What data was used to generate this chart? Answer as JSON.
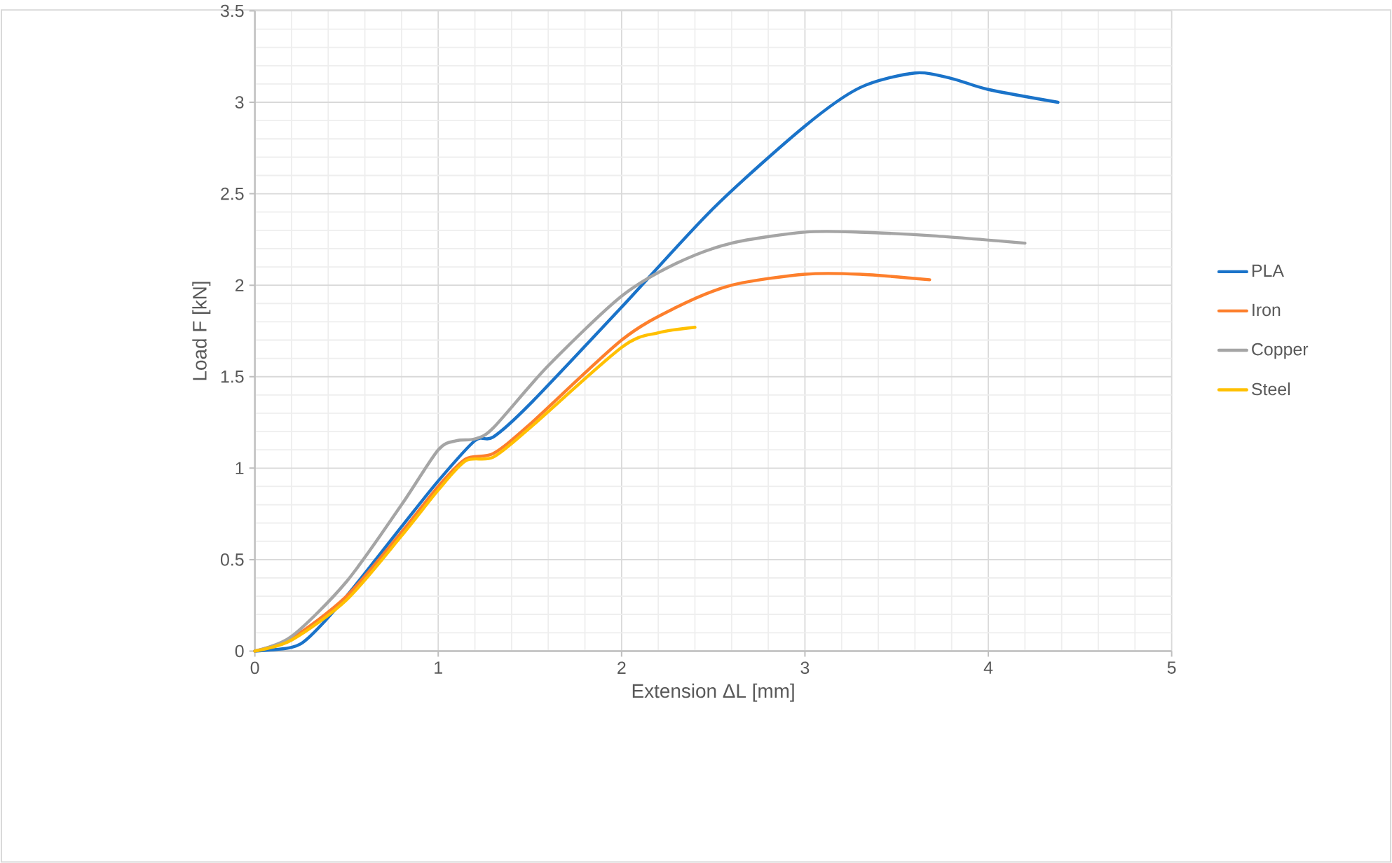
{
  "chart_data": {
    "type": "line",
    "xlabel": "Extension ΔL [mm]",
    "ylabel": "Load F [kN]",
    "xlim": [
      0,
      5
    ],
    "ylim": [
      0,
      3.5
    ],
    "xticks": [
      0,
      1,
      2,
      3,
      4,
      5
    ],
    "yticks": [
      0,
      0.5,
      1,
      1.5,
      2,
      2.5,
      3,
      3.5
    ],
    "grid": true,
    "legend": "right",
    "marker": "none",
    "line_style": "solid",
    "series": [
      {
        "name": "PLA",
        "color": "#1a73c9",
        "x": [
          0,
          0.2,
          0.3,
          0.5,
          0.8,
          1.0,
          1.2,
          1.3,
          1.5,
          2.0,
          2.5,
          3.0,
          3.3,
          3.6,
          3.8,
          4.0,
          4.38
        ],
        "values": [
          0,
          0.02,
          0.08,
          0.3,
          0.68,
          0.93,
          1.15,
          1.17,
          1.35,
          1.88,
          2.42,
          2.87,
          3.08,
          3.16,
          3.13,
          3.07,
          3.0
        ]
      },
      {
        "name": "Iron",
        "color": "#fd7f2c",
        "x": [
          0,
          0.2,
          0.5,
          0.8,
          1.0,
          1.15,
          1.3,
          1.5,
          2.0,
          2.3,
          2.6,
          3.0,
          3.3,
          3.68
        ],
        "values": [
          0,
          0.07,
          0.3,
          0.65,
          0.9,
          1.05,
          1.08,
          1.24,
          1.7,
          1.88,
          2.0,
          2.06,
          2.06,
          2.03
        ]
      },
      {
        "name": "Copper",
        "color": "#a5a5a5",
        "x": [
          0,
          0.2,
          0.5,
          0.8,
          1.0,
          1.1,
          1.2,
          1.3,
          1.6,
          2.0,
          2.3,
          2.6,
          3.0,
          3.3,
          3.7,
          4.2
        ],
        "values": [
          0,
          0.08,
          0.38,
          0.8,
          1.1,
          1.15,
          1.16,
          1.22,
          1.56,
          1.94,
          2.12,
          2.23,
          2.29,
          2.29,
          2.27,
          2.23
        ]
      },
      {
        "name": "Steel",
        "color": "#ffc000",
        "x": [
          0,
          0.2,
          0.5,
          0.8,
          1.0,
          1.15,
          1.3,
          1.5,
          2.0,
          2.2,
          2.4
        ],
        "values": [
          0,
          0.06,
          0.28,
          0.63,
          0.88,
          1.04,
          1.06,
          1.22,
          1.66,
          1.74,
          1.77
        ]
      }
    ]
  }
}
